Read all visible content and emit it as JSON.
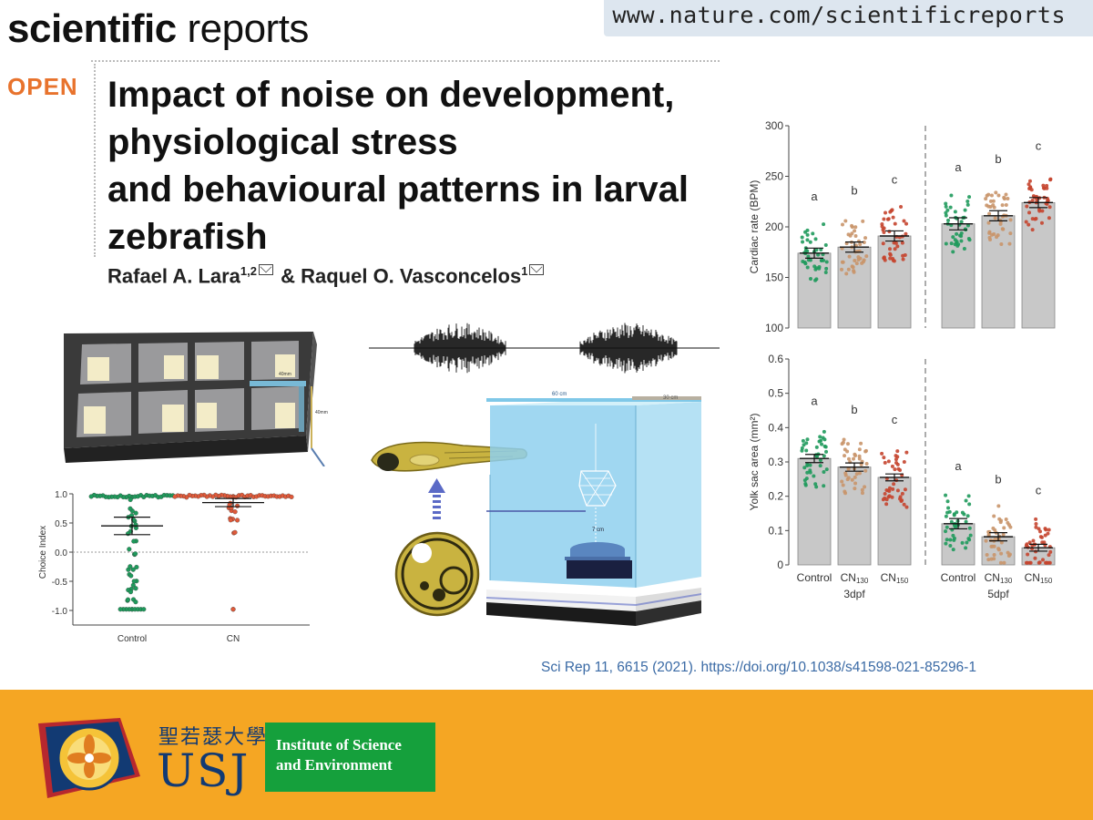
{
  "header": {
    "journal_bold": "scientific",
    "journal_thin": " reports",
    "url": "www.nature.com/scientificreports"
  },
  "article": {
    "open_label": "OPEN",
    "title_lines": [
      "Impact of noise on development,",
      "physiological stress",
      "and behavioural patterns in larval",
      "zebrafish"
    ],
    "author1": "Rafael A. Lara",
    "author1_sup": "1,2",
    "author_sep": " & Raquel O. Vasconcelos",
    "author2_sup": "1",
    "citation": "Sci Rep 11, 6615 (2021). https://doi.org/10.1038/s41598-021-85296-1"
  },
  "figure_labels": {
    "dim_40mm": "40mm",
    "dim_40mm_b": "40mm",
    "dim_60cm": "60 cm",
    "dim_30cm": "30 cm",
    "dim_7cm": "7 cm"
  },
  "colors": {
    "control_green": "#1f9a5c",
    "cn130_tan": "#c9956a",
    "cn150_red": "#c5452f",
    "footer_orange": "#f5a623",
    "ise_green": "#15a03c",
    "usj_blue": "#123a73",
    "open_orange": "#e8732d"
  },
  "chart_data": [
    {
      "type": "scatter",
      "title": "",
      "xlabel": "",
      "ylabel": "Choice Index",
      "categories": [
        "Control",
        "CN"
      ],
      "ylim": [
        -1.0,
        1.0
      ],
      "yticks": [
        "1.0",
        "0.5",
        "0.0",
        "-0.5",
        "-1.0"
      ],
      "means": [
        0.45,
        0.85
      ],
      "sem": [
        0.15,
        0.07
      ],
      "point_colors": [
        "#1f9a5c",
        "#e05a3a"
      ]
    },
    {
      "type": "bar",
      "ylabel": "Cardiac rate (BPM)",
      "ylim": [
        100,
        300
      ],
      "yticks": [
        "300",
        "250",
        "200",
        "150",
        "100"
      ],
      "groups": [
        "3dpf",
        "5dpf"
      ],
      "categories": [
        "Control",
        "CN130",
        "CN150"
      ],
      "category_main": [
        "Control",
        "CN",
        "CN"
      ],
      "category_sub": [
        "",
        "130",
        "150"
      ],
      "series": [
        {
          "group": "3dpf",
          "values": [
            174,
            180,
            191
          ],
          "sem": [
            5,
            5,
            5
          ],
          "letters": [
            "a",
            "b",
            "c"
          ]
        },
        {
          "group": "5dpf",
          "values": [
            203,
            211,
            224
          ],
          "sem": [
            6,
            5,
            5
          ],
          "letters": [
            "a",
            "b",
            "c"
          ]
        }
      ]
    },
    {
      "type": "bar",
      "ylabel": "Yolk sac area (mm²)",
      "ylim": [
        0,
        0.6
      ],
      "yticks": [
        "0.6",
        "0.5",
        "0.4",
        "0.3",
        "0.2",
        "0.1",
        "0"
      ],
      "groups": [
        "3dpf",
        "5dpf"
      ],
      "categories": [
        "Control",
        "CN130",
        "CN150"
      ],
      "category_main": [
        "Control",
        "CN",
        "CN"
      ],
      "category_sub": [
        "",
        "130",
        "150"
      ],
      "series": [
        {
          "group": "3dpf",
          "values": [
            0.31,
            0.285,
            0.255
          ],
          "sem": [
            0.012,
            0.012,
            0.01
          ],
          "letters": [
            "a",
            "b",
            "c"
          ]
        },
        {
          "group": "5dpf",
          "values": [
            0.12,
            0.082,
            0.05
          ],
          "sem": [
            0.015,
            0.012,
            0.01
          ],
          "letters": [
            "a",
            "b",
            "c"
          ]
        }
      ]
    }
  ],
  "footer": {
    "usj_chinese": "聖若瑟大學",
    "usj": "USJ",
    "ise_line1": "Institute of  Science",
    "ise_line2": "and Environment"
  }
}
